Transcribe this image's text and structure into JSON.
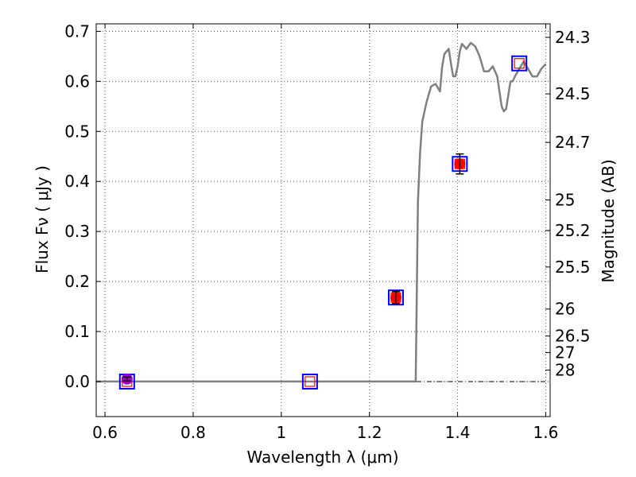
{
  "chart_data": {
    "type": "scatter",
    "title": "",
    "xlabel": "Wavelength  λ (μm)",
    "ylabel": "Flux  Fν ( μJy )",
    "y2label": "Magnitude (AB)",
    "xlim": [
      0.58,
      1.61
    ],
    "ylim": [
      -0.07,
      0.715
    ],
    "grid": true,
    "x_ticks": [
      {
        "value": 0.6,
        "label": "0.6"
      },
      {
        "value": 0.8,
        "label": "0.8"
      },
      {
        "value": 1.0,
        "label": "1"
      },
      {
        "value": 1.2,
        "label": "1.2"
      },
      {
        "value": 1.4,
        "label": "1.4"
      },
      {
        "value": 1.6,
        "label": "1.6"
      }
    ],
    "y_ticks": [
      {
        "value": 0.0,
        "label": "0.0"
      },
      {
        "value": 0.1,
        "label": "0.1"
      },
      {
        "value": 0.2,
        "label": "0.2"
      },
      {
        "value": 0.3,
        "label": "0.3"
      },
      {
        "value": 0.4,
        "label": "0.4"
      },
      {
        "value": 0.5,
        "label": "0.5"
      },
      {
        "value": 0.6,
        "label": "0.6"
      },
      {
        "value": 0.7,
        "label": "0.7"
      }
    ],
    "magnitude_ticks": [
      {
        "flux": 0.688,
        "label": "24.3"
      },
      {
        "flux": 0.575,
        "label": "24.5"
      },
      {
        "flux": 0.478,
        "label": "24.7"
      },
      {
        "flux": 0.363,
        "label": "25"
      },
      {
        "flux": 0.302,
        "label": "25.2"
      },
      {
        "flux": 0.229,
        "label": "25.5"
      },
      {
        "flux": 0.145,
        "label": "26"
      },
      {
        "flux": 0.091,
        "label": "26.5"
      },
      {
        "flux": 0.058,
        "label": "27"
      },
      {
        "flux": 0.023,
        "label": "28"
      }
    ],
    "observed_points": [
      {
        "x": 0.65,
        "y": 0.005,
        "err": 0.004,
        "color": "#9b00c8"
      },
      {
        "x": 1.26,
        "y": 0.168,
        "err": 0.012,
        "color": "#ff0000"
      },
      {
        "x": 1.405,
        "y": 0.435,
        "err": 0.02,
        "color": "#ff0000"
      }
    ],
    "model_points": [
      {
        "x": 0.65,
        "y": 0.0
      },
      {
        "x": 1.065,
        "y": 0.0
      },
      {
        "x": 1.26,
        "y": 0.168
      },
      {
        "x": 1.405,
        "y": 0.435
      },
      {
        "x": 1.54,
        "y": 0.636
      }
    ],
    "sed_curve": {
      "x": [
        0.58,
        0.7,
        0.9,
        1.1,
        1.3,
        1.305,
        1.31,
        1.315,
        1.32,
        1.33,
        1.34,
        1.35,
        1.36,
        1.365,
        1.37,
        1.38,
        1.385,
        1.39,
        1.395,
        1.4,
        1.405,
        1.41,
        1.415,
        1.42,
        1.43,
        1.44,
        1.45,
        1.46,
        1.47,
        1.48,
        1.49,
        1.5,
        1.505,
        1.51,
        1.52,
        1.525,
        1.53,
        1.54,
        1.55,
        1.56,
        1.57,
        1.58,
        1.59,
        1.6
      ],
      "y": [
        0.0,
        0.0,
        0.0,
        0.0,
        0.0,
        0.0,
        0.36,
        0.46,
        0.52,
        0.56,
        0.59,
        0.595,
        0.58,
        0.63,
        0.655,
        0.665,
        0.635,
        0.61,
        0.61,
        0.63,
        0.66,
        0.675,
        0.67,
        0.665,
        0.677,
        0.67,
        0.65,
        0.62,
        0.62,
        0.63,
        0.61,
        0.55,
        0.54,
        0.545,
        0.6,
        0.6,
        0.61,
        0.625,
        0.64,
        0.625,
        0.61,
        0.61,
        0.625,
        0.635
      ]
    },
    "reference_line": {
      "y": 0.0,
      "style": "dash-dot"
    },
    "colors": {
      "curve": "#808080",
      "square_outer": "#0000ff",
      "square_inner": "#ff0000",
      "grid": "#555555",
      "axis": "#000000",
      "errorbar": "#000000"
    }
  }
}
